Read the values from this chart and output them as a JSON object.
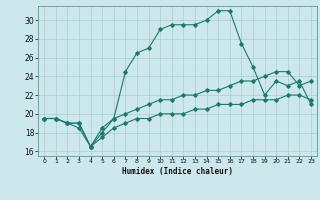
{
  "title": "",
  "xlabel": "Humidex (Indice chaleur)",
  "bg_color": "#cde8ec",
  "grid_color": "#aacccc",
  "line_color": "#1a7a6e",
  "xlim": [
    -0.5,
    23.5
  ],
  "ylim": [
    15.5,
    31.5
  ],
  "xticks": [
    0,
    1,
    2,
    3,
    4,
    5,
    6,
    7,
    8,
    9,
    10,
    11,
    12,
    13,
    14,
    15,
    16,
    17,
    18,
    19,
    20,
    21,
    22,
    23
  ],
  "yticks": [
    16,
    18,
    20,
    22,
    24,
    26,
    28,
    30
  ],
  "line1_x": [
    0,
    1,
    2,
    3,
    4,
    5,
    6,
    7,
    8,
    9,
    10,
    11,
    12,
    13,
    14,
    15,
    16,
    17,
    18,
    19,
    20,
    21,
    22,
    23
  ],
  "line1_y": [
    19.5,
    19.5,
    19.0,
    18.5,
    16.5,
    18.0,
    19.5,
    24.5,
    26.5,
    27.0,
    29.0,
    29.5,
    29.5,
    29.5,
    30.0,
    31.0,
    31.0,
    27.5,
    25.0,
    22.0,
    23.5,
    23.0,
    23.5,
    21.0
  ],
  "line2_x": [
    0,
    1,
    2,
    3,
    4,
    5,
    6,
    7,
    8,
    9,
    10,
    11,
    12,
    13,
    14,
    15,
    16,
    17,
    18,
    19,
    20,
    21,
    22,
    23
  ],
  "line2_y": [
    19.5,
    19.5,
    19.0,
    19.0,
    16.5,
    18.5,
    19.5,
    20.0,
    20.5,
    21.0,
    21.5,
    21.5,
    22.0,
    22.0,
    22.5,
    22.5,
    23.0,
    23.5,
    23.5,
    24.0,
    24.5,
    24.5,
    23.0,
    23.5
  ],
  "line3_x": [
    0,
    1,
    2,
    3,
    4,
    5,
    6,
    7,
    8,
    9,
    10,
    11,
    12,
    13,
    14,
    15,
    16,
    17,
    18,
    19,
    20,
    21,
    22,
    23
  ],
  "line3_y": [
    19.5,
    19.5,
    19.0,
    19.0,
    16.5,
    17.5,
    18.5,
    19.0,
    19.5,
    19.5,
    20.0,
    20.0,
    20.0,
    20.5,
    20.5,
    21.0,
    21.0,
    21.0,
    21.5,
    21.5,
    21.5,
    22.0,
    22.0,
    21.5
  ]
}
